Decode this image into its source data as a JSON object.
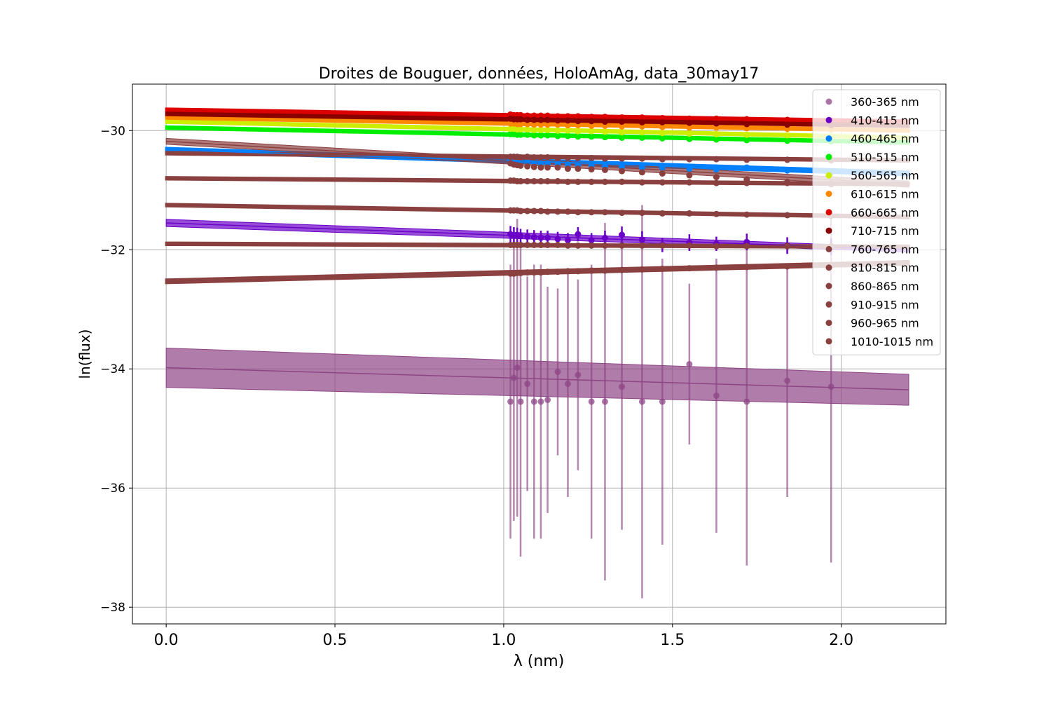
{
  "chart_data": {
    "type": "scatter",
    "title": "Droites de Bouguer, données, HoloAmAg, data_30may17",
    "xlabel": "λ (nm)",
    "ylabel": "ln(flux)",
    "xlim": [
      -0.1,
      2.31
    ],
    "ylim": [
      -38.28,
      -29.22
    ],
    "xticks": [
      0.0,
      0.5,
      1.0,
      1.5,
      2.0
    ],
    "xtick_labels": [
      "0.0",
      "0.5",
      "1.0",
      "1.5",
      "2.0"
    ],
    "yticks": [
      -38,
      -36,
      -34,
      -32,
      -30
    ],
    "ytick_labels": [
      "−38",
      "−36",
      "−34",
      "−32",
      "−30"
    ],
    "grid": true,
    "legend_position": "top-right",
    "x": [
      1.02,
      1.03,
      1.04,
      1.05,
      1.07,
      1.09,
      1.11,
      1.13,
      1.16,
      1.19,
      1.22,
      1.26,
      1.3,
      1.35,
      1.41,
      1.47,
      1.55,
      1.63,
      1.72,
      1.84,
      1.97
    ],
    "fit_x": [
      0.0,
      2.2
    ],
    "series": [
      {
        "name": "360-365 nm",
        "color": "#8e4585",
        "fit_y": [
          -33.98,
          -34.35
        ],
        "band": [
          0.33,
          0.26
        ],
        "y": [
          -34.55,
          -34.15,
          -33.98,
          -34.55,
          -34.25,
          -34.55,
          -34.55,
          -34.52,
          -34.05,
          -34.25,
          -34.1,
          -34.55,
          -34.55,
          -34.3,
          -34.55,
          -34.55,
          -33.92,
          -34.45,
          -34.55,
          -34.2,
          -34.3
        ],
        "err": [
          2.3,
          2.4,
          2.5,
          2.6,
          1.8,
          2.3,
          2.3,
          1.9,
          1.4,
          1.9,
          1.6,
          2.3,
          3.0,
          2.4,
          3.3,
          2.4,
          1.35,
          2.3,
          2.75,
          1.95,
          2.95
        ],
        "halo": true
      },
      {
        "name": "410-415 nm",
        "color": "#6a00c8",
        "fit_y": [
          -31.55,
          -32.0
        ],
        "band": [
          0.06,
          0.04
        ],
        "y": [
          -31.74,
          -31.76,
          -31.75,
          -31.77,
          -31.78,
          -31.79,
          -31.8,
          -31.8,
          -31.82,
          -31.84,
          -31.74,
          -31.84,
          -31.8,
          -31.75,
          -31.83,
          -31.92,
          -31.88,
          -31.9,
          -31.87,
          -31.93,
          -31.95
        ],
        "err": [
          0.14,
          0.14,
          0.12,
          0.12,
          0.12,
          0.12,
          0.12,
          0.12,
          0.12,
          0.12,
          0.12,
          0.12,
          0.12,
          0.14,
          0.14,
          0.12,
          0.14,
          0.12,
          0.14,
          0.14,
          0.14
        ]
      },
      {
        "name": "460-465 nm",
        "color": "#0080ff",
        "fit_y": [
          -30.32,
          -30.72
        ],
        "band": [
          0.03,
          0.03
        ],
        "y": [
          -30.51,
          -30.52,
          -30.52,
          -30.53,
          -30.53,
          -30.54,
          -30.55,
          -30.55,
          -30.56,
          -30.57,
          -30.58,
          -30.59,
          -30.6,
          -30.61,
          -30.62,
          -30.62,
          -30.64,
          -30.65,
          -30.62,
          -30.67,
          -30.7
        ],
        "err": [
          0.03,
          0.03,
          0.03,
          0.03,
          0.03,
          0.03,
          0.03,
          0.03,
          0.03,
          0.03,
          0.03,
          0.03,
          0.03,
          0.03,
          0.03,
          0.03,
          0.03,
          0.03,
          0.03,
          0.03,
          0.03
        ]
      },
      {
        "name": "510-515 nm",
        "color": "#00ee00",
        "fit_y": [
          -29.95,
          -30.2
        ],
        "band": [
          0.02,
          0.02
        ],
        "y": [
          -30.06,
          -30.06,
          -30.07,
          -30.07,
          -30.07,
          -30.08,
          -30.08,
          -30.08,
          -30.09,
          -30.09,
          -30.1,
          -30.1,
          -30.11,
          -30.12,
          -30.12,
          -30.13,
          -30.14,
          -30.15,
          -30.16,
          -30.17,
          -30.18
        ],
        "err": [
          0.02,
          0.02,
          0.02,
          0.02,
          0.02,
          0.02,
          0.02,
          0.02,
          0.02,
          0.02,
          0.02,
          0.02,
          0.02,
          0.02,
          0.02,
          0.02,
          0.02,
          0.02,
          0.02,
          0.02,
          0.02
        ]
      },
      {
        "name": "560-565 nm",
        "color": "#ccee00",
        "fit_y": [
          -29.85,
          -30.12
        ],
        "band": [
          0.02,
          0.02
        ],
        "y": [
          -29.97,
          -29.97,
          -29.98,
          -29.98,
          -29.98,
          -29.99,
          -29.99,
          -29.99,
          -30.0,
          -30.0,
          -30.01,
          -30.01,
          -30.02,
          -30.03,
          -30.03,
          -30.04,
          -30.05,
          -30.06,
          -30.07,
          -30.08,
          -30.09
        ],
        "err": [
          0.02,
          0.02,
          0.02,
          0.02,
          0.02,
          0.02,
          0.02,
          0.02,
          0.02,
          0.02,
          0.02,
          0.02,
          0.02,
          0.02,
          0.02,
          0.02,
          0.02,
          0.02,
          0.02,
          0.02,
          0.02
        ]
      },
      {
        "name": "610-615 nm",
        "color": "#ff8800",
        "fit_y": [
          -29.78,
          -30.0
        ],
        "band": [
          0.02,
          0.02
        ],
        "y": [
          -29.88,
          -29.88,
          -29.89,
          -29.89,
          -29.89,
          -29.9,
          -29.9,
          -29.9,
          -29.9,
          -29.91,
          -29.91,
          -29.92,
          -29.92,
          -29.93,
          -29.93,
          -29.94,
          -29.95,
          -29.95,
          -29.96,
          -29.97,
          -29.98
        ],
        "err": [
          0.02,
          0.02,
          0.02,
          0.02,
          0.02,
          0.02,
          0.02,
          0.02,
          0.02,
          0.02,
          0.02,
          0.02,
          0.02,
          0.02,
          0.02,
          0.02,
          0.02,
          0.02,
          0.02,
          0.02,
          0.02
        ]
      },
      {
        "name": "660-665 nm",
        "color": "#dd0000",
        "fit_y": [
          -29.65,
          -29.85
        ],
        "band": [
          0.02,
          0.02
        ],
        "y": [
          -29.73,
          -29.74,
          -29.74,
          -29.74,
          -29.75,
          -29.75,
          -29.75,
          -29.75,
          -29.76,
          -29.76,
          -29.76,
          -29.77,
          -29.77,
          -29.78,
          -29.78,
          -29.79,
          -29.8,
          -29.8,
          -29.81,
          -29.82,
          -29.83
        ],
        "err": [
          0.02,
          0.02,
          0.02,
          0.02,
          0.02,
          0.02,
          0.02,
          0.02,
          0.02,
          0.02,
          0.02,
          0.02,
          0.02,
          0.02,
          0.02,
          0.02,
          0.02,
          0.02,
          0.02,
          0.02,
          0.02
        ]
      },
      {
        "name": "710-715 nm",
        "color": "#880000",
        "fit_y": [
          -29.72,
          -29.92
        ],
        "band": [
          0.02,
          0.02
        ],
        "y": [
          -29.8,
          -29.81,
          -29.81,
          -29.81,
          -29.82,
          -29.82,
          -29.82,
          -29.82,
          -29.83,
          -29.83,
          -29.84,
          -29.84,
          -29.85,
          -29.85,
          -29.86,
          -29.86,
          -29.87,
          -29.88,
          -29.89,
          -29.9,
          -29.91
        ],
        "err": [
          0.02,
          0.02,
          0.02,
          0.02,
          0.02,
          0.02,
          0.02,
          0.02,
          0.02,
          0.02,
          0.02,
          0.02,
          0.02,
          0.02,
          0.02,
          0.02,
          0.02,
          0.02,
          0.02,
          0.02,
          0.02
        ]
      },
      {
        "name": "760-765 nm",
        "color": "#8b4040",
        "fit_y": [
          -30.38,
          -30.5
        ],
        "band": [
          0.02,
          0.02
        ],
        "y": [
          -30.44,
          -30.44,
          -30.44,
          -30.45,
          -30.44,
          -30.45,
          -30.45,
          -30.45,
          -30.46,
          -30.46,
          -30.46,
          -30.46,
          -30.47,
          -30.47,
          -30.47,
          -30.48,
          -30.48,
          -30.48,
          -30.49,
          -30.49,
          -30.5
        ],
        "err": [
          0.02,
          0.02,
          0.02,
          0.02,
          0.02,
          0.02,
          0.02,
          0.02,
          0.02,
          0.02,
          0.02,
          0.02,
          0.02,
          0.02,
          0.02,
          0.02,
          0.02,
          0.02,
          0.02,
          0.02,
          0.02
        ]
      },
      {
        "name": "810-815 nm",
        "color": "#8b4040",
        "fit_y": [
          -30.18,
          -30.9
        ],
        "band": [
          0.05,
          0.05
        ],
        "y": [
          -30.55,
          -30.57,
          -30.58,
          -30.59,
          -30.6,
          -30.61,
          -30.62,
          -30.62,
          -30.62,
          -30.64,
          -30.64,
          -30.65,
          -30.66,
          -30.68,
          -30.7,
          -30.72,
          -30.75,
          -30.78,
          -30.82,
          -30.86,
          -30.9
        ],
        "err": [
          0.03,
          0.03,
          0.03,
          0.03,
          0.03,
          0.03,
          0.03,
          0.03,
          0.03,
          0.03,
          0.03,
          0.03,
          0.03,
          0.03,
          0.03,
          0.03,
          0.03,
          0.03,
          0.03,
          0.03,
          0.03
        ]
      },
      {
        "name": "860-865 nm",
        "color": "#8b4040",
        "fit_y": [
          -30.8,
          -30.9
        ],
        "band": [
          0.02,
          0.02
        ],
        "y": [
          -30.84,
          -30.84,
          -30.85,
          -30.85,
          -30.85,
          -30.85,
          -30.85,
          -30.85,
          -30.85,
          -30.86,
          -30.86,
          -30.86,
          -30.86,
          -30.86,
          -30.87,
          -30.87,
          -30.87,
          -30.88,
          -30.88,
          -30.88,
          -30.89
        ],
        "err": [
          0.02,
          0.02,
          0.02,
          0.02,
          0.02,
          0.02,
          0.02,
          0.02,
          0.02,
          0.02,
          0.02,
          0.02,
          0.02,
          0.02,
          0.02,
          0.02,
          0.02,
          0.02,
          0.02,
          0.02,
          0.02
        ]
      },
      {
        "name": "910-915 nm",
        "color": "#8b4040",
        "fit_y": [
          -31.25,
          -31.45
        ],
        "band": [
          0.02,
          0.02
        ],
        "y": [
          -31.34,
          -31.34,
          -31.34,
          -31.35,
          -31.35,
          -31.35,
          -31.35,
          -31.36,
          -31.36,
          -31.36,
          -31.37,
          -31.37,
          -31.37,
          -31.38,
          -31.38,
          -31.39,
          -31.39,
          -31.4,
          -31.41,
          -31.42,
          -31.43
        ],
        "err": [
          0.02,
          0.02,
          0.02,
          0.02,
          0.02,
          0.02,
          0.02,
          0.02,
          0.02,
          0.02,
          0.02,
          0.02,
          0.02,
          0.02,
          0.02,
          0.02,
          0.02,
          0.02,
          0.02,
          0.02,
          0.02
        ]
      },
      {
        "name": "960-965 nm",
        "color": "#8b4040",
        "fit_y": [
          -31.9,
          -31.95
        ],
        "band": [
          0.02,
          0.02
        ],
        "y": [
          -31.92,
          -31.92,
          -31.92,
          -31.92,
          -31.92,
          -31.92,
          -31.92,
          -31.92,
          -31.92,
          -31.93,
          -31.93,
          -31.93,
          -31.93,
          -31.93,
          -31.93,
          -31.93,
          -31.93,
          -31.94,
          -31.94,
          -31.94,
          -31.94
        ],
        "err": [
          0.03,
          0.03,
          0.03,
          0.03,
          0.03,
          0.03,
          0.03,
          0.03,
          0.03,
          0.03,
          0.03,
          0.03,
          0.03,
          0.03,
          0.03,
          0.03,
          0.03,
          0.03,
          0.03,
          0.03,
          0.03
        ]
      },
      {
        "name": "1010-1015 nm",
        "color": "#8b4040",
        "fit_y": [
          -32.53,
          -32.22
        ],
        "band": [
          0.03,
          0.03
        ],
        "y": [
          -32.4,
          -32.4,
          -32.39,
          -32.39,
          -32.38,
          -32.38,
          -32.38,
          -32.37,
          -32.37,
          -32.36,
          -32.36,
          -32.35,
          -32.35,
          -32.34,
          -32.33,
          -32.32,
          -32.31,
          -32.3,
          -32.29,
          -32.28,
          -32.26
        ],
        "err": [
          0.04,
          0.04,
          0.04,
          0.04,
          0.04,
          0.04,
          0.04,
          0.04,
          0.04,
          0.04,
          0.04,
          0.04,
          0.04,
          0.04,
          0.04,
          0.04,
          0.04,
          0.04,
          0.04,
          0.04,
          0.04
        ]
      }
    ]
  }
}
